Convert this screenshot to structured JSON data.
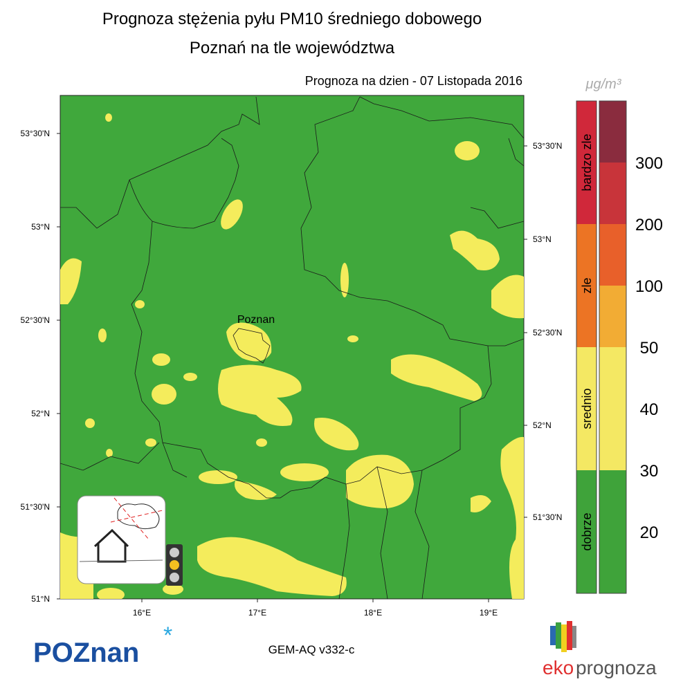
{
  "title": [
    "Prognoza stężenia pyłu PM10 średniego dobowego",
    "Poznań na tle województwa"
  ],
  "forecast_date": "Prognoza na dzien -  07 Listopada 2016",
  "map": {
    "city_label": "Poznan",
    "lat_labels_left": [
      "53°30'N",
      "53°N",
      "52°30'N",
      "52°N",
      "51°30'N",
      "51°N"
    ],
    "lat_labels_right": [
      "53°30'N",
      "53°N",
      "52°30'N",
      "52°N",
      "51°30'N"
    ],
    "lon_labels": [
      "16°E",
      "17°E",
      "18°E",
      "19°E"
    ]
  },
  "legend": {
    "unit": "μg/m³",
    "categories": [
      "bardzo zle",
      "zle",
      "srednio",
      "dobrze"
    ],
    "levels": [
      "300",
      "200",
      "100",
      "50",
      "40",
      "30",
      "20"
    ]
  },
  "model": "GEM-AQ v332-c",
  "logos": {
    "poznan": "POZnan",
    "eko": "eko",
    "prognoza": "prognoza"
  }
}
